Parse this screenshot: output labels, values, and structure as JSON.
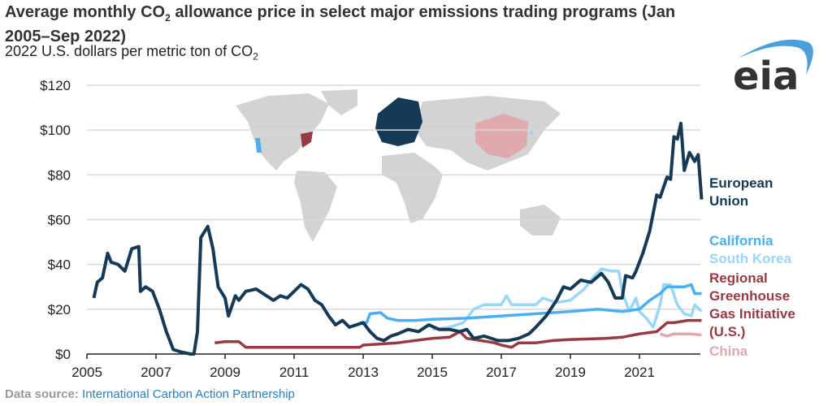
{
  "title_main": "Average monthly CO",
  "title_sub": "2",
  "title_rest": " allowance price in select major emissions trading programs (Jan 2005–Sep 2022)",
  "subtitle_main": "2022 U.S. dollars per metric ton of CO",
  "subtitle_sub": "2",
  "source_label": "Data source:",
  "source_text": "International Carbon Action Partnership",
  "logo_text": "eia",
  "colors": {
    "eu": "#163a56",
    "california": "#4aaef0",
    "korea": "#9ad6fb",
    "rggi": "#973a41",
    "china": "#e0a9ae",
    "grid": "#d9d9d9",
    "map": "#d3d3d3"
  },
  "chart_data": {
    "type": "line",
    "title": "Average monthly CO2 allowance price in select major emissions trading programs (Jan 2005–Sep 2022)",
    "ylabel": "2022 U.S. dollars per metric ton of CO2",
    "ylim": [
      0,
      120
    ],
    "xlim": [
      2005,
      2022.8
    ],
    "grid": true,
    "legend": "right, inline labels",
    "yticks": [
      "$0",
      "$20",
      "$40",
      "$60",
      "$80",
      "$100",
      "$120"
    ],
    "ytick_values": [
      0,
      20,
      40,
      60,
      80,
      100,
      120
    ],
    "xticks": [
      "2005",
      "2007",
      "2009",
      "2011",
      "2013",
      "2015",
      "2017",
      "2019",
      "2021"
    ],
    "xtick_values": [
      2005,
      2007,
      2009,
      2011,
      2013,
      2015,
      2017,
      2019,
      2021
    ],
    "series": [
      {
        "name": "European Union",
        "key": "eu",
        "points": [
          [
            2005.2,
            25
          ],
          [
            2005.3,
            32
          ],
          [
            2005.45,
            34
          ],
          [
            2005.6,
            45
          ],
          [
            2005.7,
            41
          ],
          [
            2005.9,
            40
          ],
          [
            2006.1,
            37
          ],
          [
            2006.3,
            47
          ],
          [
            2006.5,
            48
          ],
          [
            2006.55,
            28
          ],
          [
            2006.7,
            30
          ],
          [
            2006.9,
            28
          ],
          [
            2007.1,
            20
          ],
          [
            2007.3,
            10
          ],
          [
            2007.5,
            2
          ],
          [
            2007.7,
            1
          ],
          [
            2008.0,
            0
          ],
          [
            2008.1,
            0
          ],
          [
            2008.2,
            10
          ],
          [
            2008.3,
            52
          ],
          [
            2008.5,
            57
          ],
          [
            2008.65,
            47
          ],
          [
            2008.8,
            30
          ],
          [
            2009.0,
            25
          ],
          [
            2009.1,
            17
          ],
          [
            2009.3,
            26
          ],
          [
            2009.4,
            24
          ],
          [
            2009.6,
            28
          ],
          [
            2009.9,
            29
          ],
          [
            2010.2,
            26
          ],
          [
            2010.4,
            24
          ],
          [
            2010.6,
            26
          ],
          [
            2010.8,
            25
          ],
          [
            2011.0,
            28
          ],
          [
            2011.2,
            31
          ],
          [
            2011.4,
            29
          ],
          [
            2011.6,
            24
          ],
          [
            2011.8,
            22
          ],
          [
            2012.0,
            17
          ],
          [
            2012.2,
            13
          ],
          [
            2012.4,
            15
          ],
          [
            2012.6,
            12
          ],
          [
            2012.8,
            13
          ],
          [
            2013.0,
            14
          ],
          [
            2013.2,
            10
          ],
          [
            2013.4,
            7
          ],
          [
            2013.6,
            6
          ],
          [
            2013.8,
            8
          ],
          [
            2014.0,
            9
          ],
          [
            2014.3,
            11
          ],
          [
            2014.6,
            10
          ],
          [
            2014.9,
            13
          ],
          [
            2015.2,
            11
          ],
          [
            2015.5,
            11
          ],
          [
            2015.8,
            10
          ],
          [
            2016.0,
            11
          ],
          [
            2016.2,
            7
          ],
          [
            2016.5,
            8
          ],
          [
            2016.9,
            6
          ],
          [
            2017.2,
            6
          ],
          [
            2017.5,
            7
          ],
          [
            2017.8,
            9
          ],
          [
            2018.0,
            12
          ],
          [
            2018.3,
            17
          ],
          [
            2018.6,
            24
          ],
          [
            2018.8,
            30
          ],
          [
            2019.0,
            29
          ],
          [
            2019.3,
            33
          ],
          [
            2019.6,
            32
          ],
          [
            2019.9,
            36
          ],
          [
            2020.1,
            32
          ],
          [
            2020.3,
            25
          ],
          [
            2020.5,
            25
          ],
          [
            2020.6,
            35
          ],
          [
            2020.8,
            34
          ],
          [
            2020.9,
            37
          ],
          [
            2021.1,
            45
          ],
          [
            2021.3,
            55
          ],
          [
            2021.5,
            71
          ],
          [
            2021.6,
            70
          ],
          [
            2021.8,
            79
          ],
          [
            2021.9,
            78
          ],
          [
            2022.0,
            97
          ],
          [
            2022.1,
            96
          ],
          [
            2022.2,
            103
          ],
          [
            2022.3,
            82
          ],
          [
            2022.45,
            90
          ],
          [
            2022.6,
            86
          ],
          [
            2022.7,
            89
          ],
          [
            2022.8,
            69
          ]
        ]
      },
      {
        "name": "California",
        "key": "california",
        "points": [
          [
            2012.9,
            14
          ],
          [
            2013.1,
            14
          ],
          [
            2013.2,
            18
          ],
          [
            2013.5,
            18.5
          ],
          [
            2013.7,
            16
          ],
          [
            2014.0,
            15
          ],
          [
            2014.5,
            15
          ],
          [
            2015.0,
            15.5
          ],
          [
            2016.0,
            16
          ],
          [
            2017.0,
            17
          ],
          [
            2018.0,
            18
          ],
          [
            2019.0,
            19
          ],
          [
            2019.8,
            20
          ],
          [
            2020.5,
            19
          ],
          [
            2021.0,
            20
          ],
          [
            2021.3,
            24
          ],
          [
            2021.6,
            27
          ],
          [
            2021.8,
            30
          ],
          [
            2022.0,
            30
          ],
          [
            2022.3,
            30
          ],
          [
            2022.5,
            31
          ],
          [
            2022.6,
            27
          ],
          [
            2022.8,
            27
          ]
        ]
      },
      {
        "name": "South Korea",
        "key": "korea",
        "points": [
          [
            2015.0,
            11
          ],
          [
            2015.5,
            12
          ],
          [
            2015.9,
            14
          ],
          [
            2016.2,
            20
          ],
          [
            2016.5,
            22
          ],
          [
            2017.0,
            22
          ],
          [
            2017.15,
            26
          ],
          [
            2017.3,
            22
          ],
          [
            2017.6,
            22
          ],
          [
            2018.0,
            22
          ],
          [
            2018.2,
            25
          ],
          [
            2018.6,
            23
          ],
          [
            2019.0,
            24
          ],
          [
            2019.4,
            29
          ],
          [
            2019.7,
            35
          ],
          [
            2019.9,
            38
          ],
          [
            2020.2,
            37
          ],
          [
            2020.4,
            37
          ],
          [
            2020.5,
            28
          ],
          [
            2020.7,
            19
          ],
          [
            2020.9,
            25
          ],
          [
            2021.0,
            19
          ],
          [
            2021.2,
            16
          ],
          [
            2021.4,
            12
          ],
          [
            2021.6,
            22
          ],
          [
            2021.7,
            31
          ],
          [
            2021.9,
            31
          ],
          [
            2022.1,
            22
          ],
          [
            2022.3,
            18
          ],
          [
            2022.5,
            17
          ],
          [
            2022.6,
            22
          ],
          [
            2022.8,
            19
          ]
        ]
      },
      {
        "name": "Regional Greenhouse Gas Initiative (U.S.)",
        "key": "rggi",
        "points": [
          [
            2008.7,
            5
          ],
          [
            2009.0,
            5.5
          ],
          [
            2009.4,
            5.5
          ],
          [
            2009.6,
            3
          ],
          [
            2010.0,
            3
          ],
          [
            2011.0,
            3
          ],
          [
            2012.0,
            3
          ],
          [
            2012.9,
            3
          ],
          [
            2013.0,
            4
          ],
          [
            2013.5,
            4.5
          ],
          [
            2014.0,
            5
          ],
          [
            2014.5,
            6
          ],
          [
            2015.0,
            7
          ],
          [
            2015.5,
            7.5
          ],
          [
            2015.8,
            10
          ],
          [
            2016.0,
            7
          ],
          [
            2016.4,
            6
          ],
          [
            2016.8,
            5
          ],
          [
            2017.0,
            4
          ],
          [
            2017.3,
            3
          ],
          [
            2017.5,
            5
          ],
          [
            2018.0,
            5
          ],
          [
            2018.5,
            6
          ],
          [
            2019.0,
            6.5
          ],
          [
            2020.0,
            7
          ],
          [
            2020.5,
            7.5
          ],
          [
            2021.0,
            9
          ],
          [
            2021.5,
            10
          ],
          [
            2021.8,
            14
          ],
          [
            2022.0,
            14
          ],
          [
            2022.4,
            15
          ],
          [
            2022.8,
            15
          ]
        ]
      },
      {
        "name": "China",
        "key": "china",
        "points": [
          [
            2021.6,
            9
          ],
          [
            2021.8,
            8
          ],
          [
            2022.0,
            9
          ],
          [
            2022.5,
            9
          ],
          [
            2022.8,
            8.5
          ]
        ]
      }
    ]
  },
  "legend": {
    "eu": [
      "European",
      "Union"
    ],
    "california": "California",
    "korea": "South Korea",
    "rggi": [
      "Regional",
      "Greenhouse",
      "Gas Initiative",
      "(U.S.)"
    ],
    "china": "China"
  }
}
